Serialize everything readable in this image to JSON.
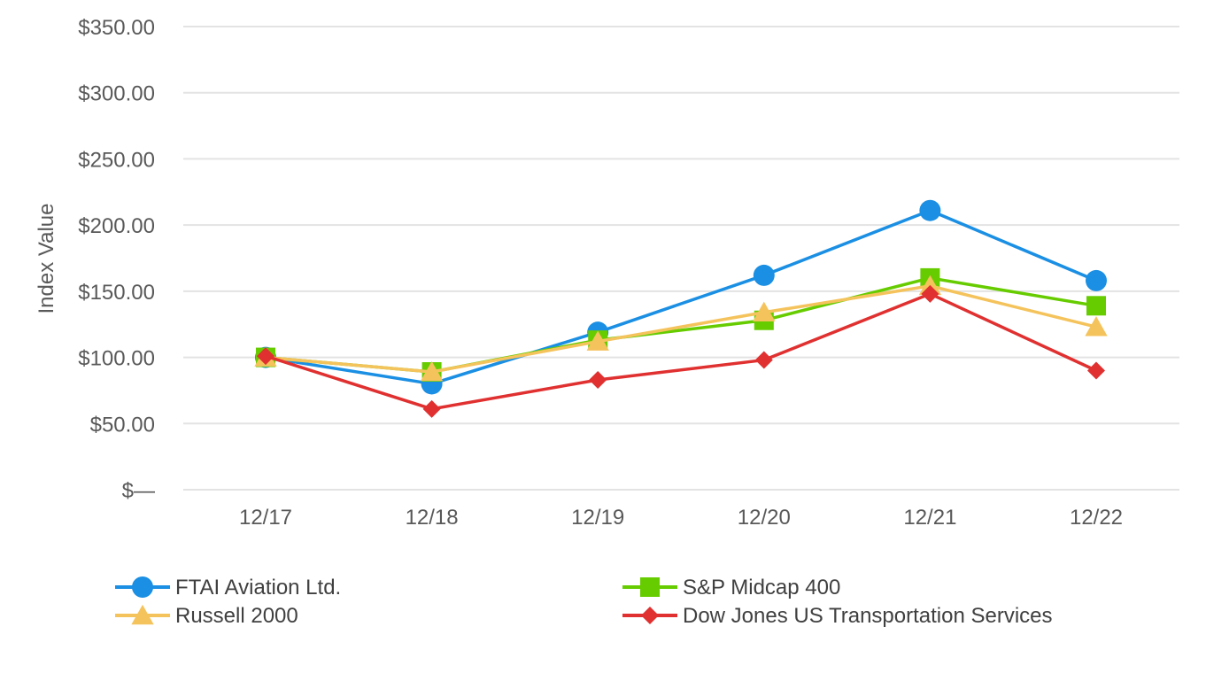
{
  "chart_data": {
    "type": "line",
    "title": "",
    "xlabel": "",
    "ylabel": "Index Value",
    "ylim": [
      0,
      350
    ],
    "y_ticks": [
      {
        "value": 0,
        "label": "$—"
      },
      {
        "value": 50,
        "label": "$50.00"
      },
      {
        "value": 100,
        "label": "$100.00"
      },
      {
        "value": 150,
        "label": "$150.00"
      },
      {
        "value": 200,
        "label": "$200.00"
      },
      {
        "value": 250,
        "label": "$250.00"
      },
      {
        "value": 300,
        "label": "$300.00"
      },
      {
        "value": 350,
        "label": "$350.00"
      }
    ],
    "grid": true,
    "categories": [
      "12/17",
      "12/18",
      "12/19",
      "12/20",
      "12/21",
      "12/22"
    ],
    "legend_position": "bottom",
    "series": [
      {
        "name": "FTAI Aviation Ltd.",
        "color": "#1A8FE3",
        "marker": "circle",
        "values": [
          100,
          80,
          119,
          162,
          211,
          158
        ]
      },
      {
        "name": "S&P Midcap 400",
        "color": "#66CC00",
        "marker": "square",
        "values": [
          100,
          89,
          113,
          128,
          160,
          139
        ]
      },
      {
        "name": "Russell 2000",
        "color": "#F5C35C",
        "marker": "triangle",
        "values": [
          100,
          89,
          112,
          134,
          154,
          123
        ]
      },
      {
        "name": "Dow Jones US Transportation Services",
        "color": "#E03030",
        "marker": "diamond",
        "values": [
          101,
          61,
          83,
          98,
          148,
          90
        ]
      }
    ],
    "colors": {
      "grid": "#E3E3E3",
      "text": "#595959",
      "legend_text": "#404040"
    }
  }
}
